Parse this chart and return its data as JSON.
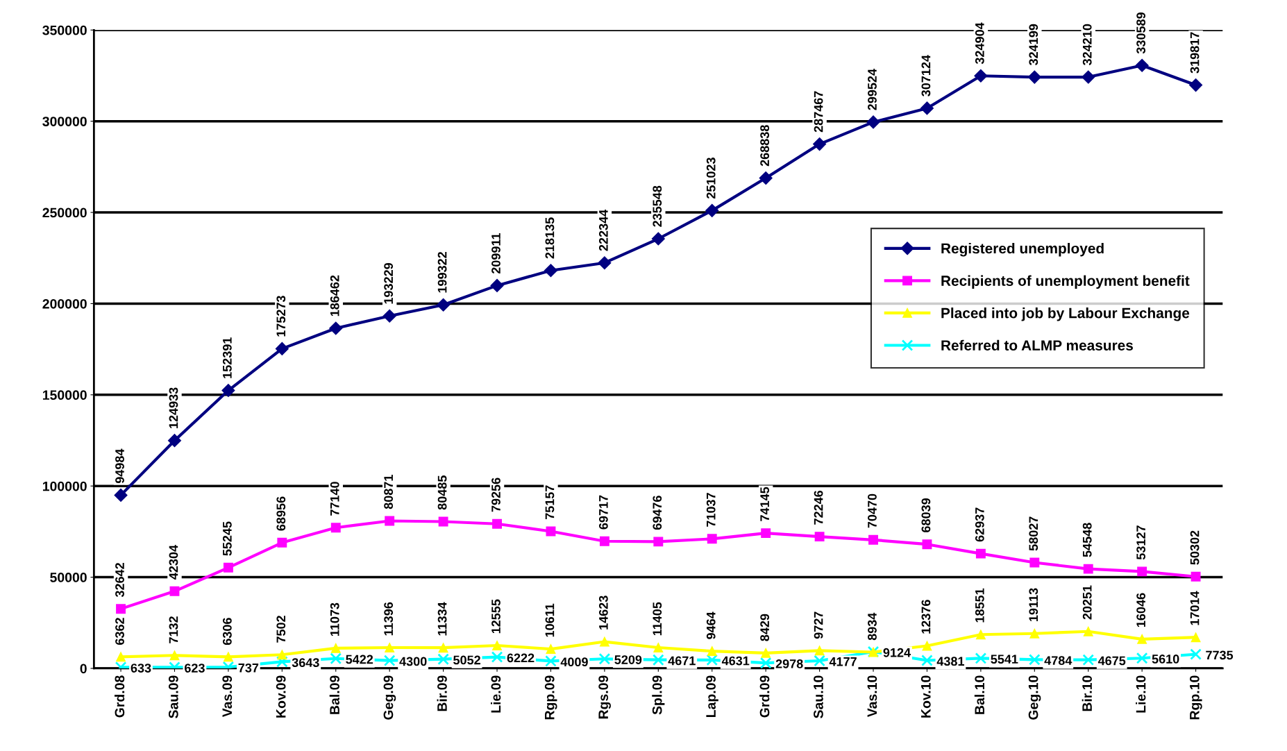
{
  "chart_data": {
    "type": "line",
    "categories": [
      "Grd.08",
      "Sau.09",
      "Vas.09",
      "Kov.09",
      "Bal.09",
      "Geg.09",
      "Bir.09",
      "Lie.09",
      "Rgp.09",
      "Rgs.09",
      "Spl.09",
      "Lap.09",
      "Grd.09",
      "Sau.10",
      "Vas.10",
      "Kov.10",
      "Bal.10",
      "Geg.10",
      "Bir.10",
      "Lie.10",
      "Rgp.10"
    ],
    "series": [
      {
        "name": "Registered unemployed",
        "color": "#000080",
        "marker": "diamond",
        "values": [
          94984,
          124933,
          152391,
          175273,
          186462,
          193229,
          199322,
          209911,
          218135,
          222344,
          235548,
          251023,
          268838,
          287467,
          299524,
          307124,
          324904,
          324199,
          324210,
          330589,
          319817
        ]
      },
      {
        "name": "Recipients of unemployment benefit",
        "color": "#ff00ff",
        "marker": "square",
        "values": [
          32642,
          42304,
          55245,
          68956,
          77140,
          80871,
          80485,
          79256,
          75157,
          69717,
          69476,
          71037,
          74145,
          72246,
          70470,
          68039,
          62937,
          58027,
          54548,
          53127,
          50302
        ]
      },
      {
        "name": "Placed into job by Labour Exchange",
        "color": "#ffff00",
        "marker": "triangle",
        "values": [
          6362,
          7132,
          6306,
          7502,
          11073,
          11396,
          11334,
          12555,
          10611,
          14623,
          11405,
          9464,
          8429,
          9727,
          8934,
          12376,
          18551,
          19113,
          20251,
          16046,
          17014
        ]
      },
      {
        "name": "Referred to ALMP measures",
        "color": "#00ffff",
        "marker": "cross",
        "values": [
          633,
          623,
          737,
          3643,
          5422,
          4300,
          5052,
          6222,
          4009,
          5209,
          4671,
          4631,
          2978,
          4177,
          9124,
          4381,
          5541,
          4784,
          4675,
          5610,
          7735
        ]
      }
    ],
    "ylim": [
      0,
      350000
    ],
    "yticks": [
      0,
      50000,
      100000,
      150000,
      200000,
      250000,
      300000,
      350000
    ],
    "grid": "y",
    "legend": "right",
    "data_labels": true,
    "line_style": "solid"
  }
}
